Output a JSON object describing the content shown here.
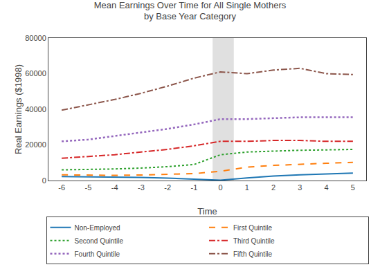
{
  "chart_data": {
    "type": "line",
    "title": "Mean Earnings Over Time for All Single Mothers\nby Base Year Category",
    "x_label": "Time",
    "y_label": "Real Earnings ($1998)",
    "x": [
      -6,
      -5,
      -4,
      -3,
      -2,
      -1,
      0,
      1,
      2,
      3,
      4,
      5
    ],
    "xlim": [
      -6.5,
      5.5
    ],
    "xticks": [
      -6,
      -5,
      -4,
      -3,
      -2,
      -1,
      0,
      1,
      2,
      3,
      4,
      5
    ],
    "ylim": [
      0,
      80000
    ],
    "yticks": [
      0,
      20000,
      40000,
      60000,
      80000
    ],
    "shaded_x": [
      -0.3,
      0.5
    ],
    "grid": false,
    "legend": "bottom",
    "series": [
      {
        "name": "Non-Employed",
        "line_style": "solid",
        "values": [
          2200,
          2100,
          1900,
          1700,
          1400,
          900,
          200,
          1500,
          2500,
          3200,
          3700,
          4200
        ]
      },
      {
        "name": "First Quintile",
        "line_style": "dashed",
        "values": [
          3200,
          3000,
          2900,
          3100,
          3400,
          3900,
          5200,
          7500,
          8500,
          9200,
          9700,
          10200
        ]
      },
      {
        "name": "Second Quintile",
        "line_style": "dotted",
        "values": [
          6000,
          6200,
          6500,
          7000,
          7800,
          9000,
          14500,
          16000,
          16500,
          17000,
          17200,
          17500
        ]
      },
      {
        "name": "Third Quintile",
        "line_style": "dashdot",
        "values": [
          12500,
          13500,
          14500,
          16000,
          17500,
          19500,
          22000,
          22000,
          22500,
          22500,
          22000,
          22000
        ]
      },
      {
        "name": "Fourth Quintile",
        "line_style": "dotted",
        "values": [
          22000,
          23000,
          25000,
          27000,
          29000,
          31500,
          34500,
          34500,
          35000,
          35500,
          35500,
          35500
        ]
      },
      {
        "name": "Fifth Quintile",
        "line_style": "dashdot",
        "values": [
          39500,
          42500,
          45500,
          49000,
          53000,
          57500,
          61000,
          60000,
          62000,
          63000,
          60000,
          59500
        ]
      }
    ]
  }
}
